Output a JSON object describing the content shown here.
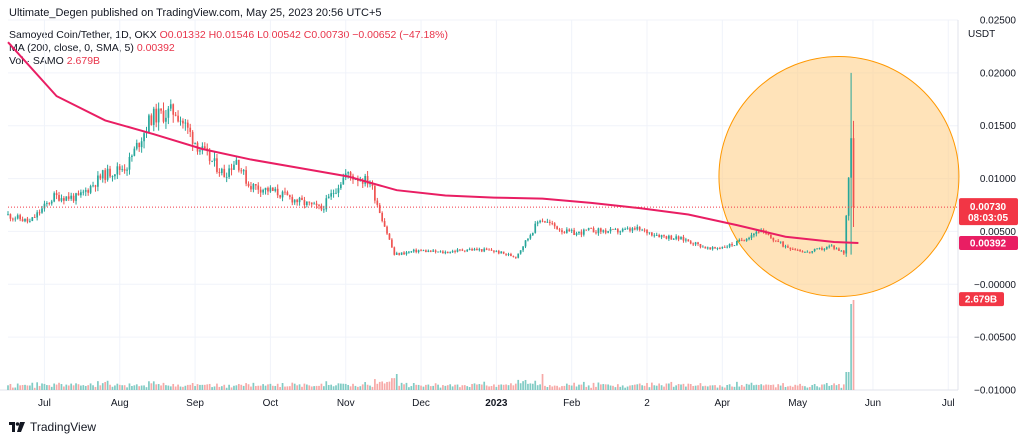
{
  "header": {
    "attribution": "Ultimate_Degen published on TradingView.com, May 25, 2023 20:56 UTC+5"
  },
  "legend": {
    "symbol": "Samoyed Coin/Tether, 1D, OKX",
    "ohlc": "O0.01382 H0.01546 L0.00542 C0.00730 −0.00652 (−47.18%)",
    "ma_label": "MA (200, close, 0, SMA, 5)",
    "ma_value": "0.00392",
    "vol_label": "Vol · SAMO",
    "vol_value": "2.679B"
  },
  "currency": "USDT",
  "footer": {
    "brand": "TradingView"
  },
  "price_tags": {
    "last_price": "0.00730",
    "countdown": "08:03:05",
    "ma_price": "0.00392",
    "volume": "2.679B",
    "hidden_tick": "0.00500"
  },
  "colors": {
    "up": "#26a69a",
    "down": "#ef5350",
    "ma_line": "#e91e63",
    "highlight_circle": "#ffcc80",
    "price_tag_red": "#f23645",
    "vol_up": "#80cbc4",
    "vol_down": "#f7a9a7"
  },
  "chart_data": {
    "type": "line",
    "title": "Samoyed Coin/Tether, 1D, OKX",
    "x_ticks": [
      "Jul",
      "Aug",
      "Sep",
      "Oct",
      "Nov",
      "Dec",
      "2023",
      "Feb",
      "2",
      "Apr",
      "May",
      "Jun",
      "Jul"
    ],
    "y_ticks": [
      "0.02500",
      "0.02000",
      "0.01500",
      "0.01000",
      "0.00500",
      "−0.00000",
      "−0.00500",
      "−0.01000"
    ],
    "y_tick_values": [
      0.025,
      0.02,
      0.015,
      0.01,
      0.005,
      0,
      -0.005,
      -0.01
    ],
    "ylim": [
      -0.01,
      0.025
    ],
    "xlim": [
      0,
      391
    ],
    "grid": true,
    "series": [
      {
        "name": "SAMO price (approx. close)",
        "x": [
          0,
          10,
          20,
          30,
          40,
          50,
          60,
          70,
          80,
          90,
          95,
          100,
          110,
          120,
          130,
          140,
          150,
          160,
          170,
          175,
          180,
          190,
          200,
          210,
          220,
          230,
          235,
          240,
          250,
          260,
          270,
          280,
          290,
          300,
          310,
          320,
          330,
          340,
          345,
          348,
          350
        ],
        "y": [
          0.0066,
          0.0059,
          0.0083,
          0.0082,
          0.0103,
          0.0112,
          0.0158,
          0.0164,
          0.0128,
          0.0104,
          0.0118,
          0.0094,
          0.0088,
          0.0079,
          0.0071,
          0.0104,
          0.0097,
          0.0028,
          0.0032,
          0.0031,
          0.003,
          0.0033,
          0.0032,
          0.0026,
          0.0062,
          0.005,
          0.0048,
          0.0051,
          0.005,
          0.0052,
          0.0046,
          0.0042,
          0.0033,
          0.0038,
          0.0051,
          0.0037,
          0.003,
          0.0036,
          0.003,
          0.0138,
          0.0073
        ]
      },
      {
        "name": "MA (200, close, 0, SMA, 5)",
        "x": [
          0,
          20,
          40,
          60,
          80,
          100,
          120,
          140,
          160,
          180,
          200,
          220,
          240,
          260,
          280,
          300,
          320,
          340,
          350
        ],
        "y": [
          0.0229,
          0.0178,
          0.0155,
          0.0142,
          0.0128,
          0.0118,
          0.011,
          0.0102,
          0.0089,
          0.0084,
          0.0082,
          0.0081,
          0.0077,
          0.0072,
          0.0066,
          0.0056,
          0.0045,
          0.004,
          0.0039
        ]
      }
    ],
    "volume": {
      "name": "Vol · SAMO",
      "last": "2.679B"
    }
  }
}
